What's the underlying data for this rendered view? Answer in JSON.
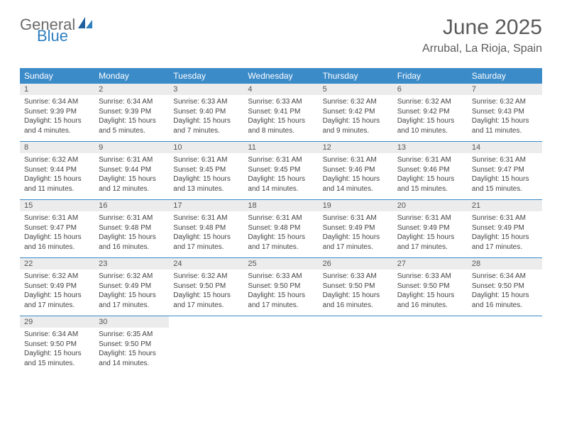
{
  "brand": {
    "general": "General",
    "blue": "Blue"
  },
  "title": "June 2025",
  "location": "Arrubal, La Rioja, Spain",
  "colors": {
    "header_bg": "#3b8bc9",
    "header_text": "#ffffff",
    "daynum_bg": "#ececec",
    "text": "#444444",
    "title_text": "#5a5a5a",
    "logo_gray": "#6b6b6b",
    "logo_blue": "#2f7fbf"
  },
  "day_headers": [
    "Sunday",
    "Monday",
    "Tuesday",
    "Wednesday",
    "Thursday",
    "Friday",
    "Saturday"
  ],
  "weeks": [
    [
      {
        "n": "1",
        "sr": "6:34 AM",
        "ss": "9:39 PM",
        "dl": "15 hours and 4 minutes."
      },
      {
        "n": "2",
        "sr": "6:34 AM",
        "ss": "9:39 PM",
        "dl": "15 hours and 5 minutes."
      },
      {
        "n": "3",
        "sr": "6:33 AM",
        "ss": "9:40 PM",
        "dl": "15 hours and 7 minutes."
      },
      {
        "n": "4",
        "sr": "6:33 AM",
        "ss": "9:41 PM",
        "dl": "15 hours and 8 minutes."
      },
      {
        "n": "5",
        "sr": "6:32 AM",
        "ss": "9:42 PM",
        "dl": "15 hours and 9 minutes."
      },
      {
        "n": "6",
        "sr": "6:32 AM",
        "ss": "9:42 PM",
        "dl": "15 hours and 10 minutes."
      },
      {
        "n": "7",
        "sr": "6:32 AM",
        "ss": "9:43 PM",
        "dl": "15 hours and 11 minutes."
      }
    ],
    [
      {
        "n": "8",
        "sr": "6:32 AM",
        "ss": "9:44 PM",
        "dl": "15 hours and 11 minutes."
      },
      {
        "n": "9",
        "sr": "6:31 AM",
        "ss": "9:44 PM",
        "dl": "15 hours and 12 minutes."
      },
      {
        "n": "10",
        "sr": "6:31 AM",
        "ss": "9:45 PM",
        "dl": "15 hours and 13 minutes."
      },
      {
        "n": "11",
        "sr": "6:31 AM",
        "ss": "9:45 PM",
        "dl": "15 hours and 14 minutes."
      },
      {
        "n": "12",
        "sr": "6:31 AM",
        "ss": "9:46 PM",
        "dl": "15 hours and 14 minutes."
      },
      {
        "n": "13",
        "sr": "6:31 AM",
        "ss": "9:46 PM",
        "dl": "15 hours and 15 minutes."
      },
      {
        "n": "14",
        "sr": "6:31 AM",
        "ss": "9:47 PM",
        "dl": "15 hours and 15 minutes."
      }
    ],
    [
      {
        "n": "15",
        "sr": "6:31 AM",
        "ss": "9:47 PM",
        "dl": "15 hours and 16 minutes."
      },
      {
        "n": "16",
        "sr": "6:31 AM",
        "ss": "9:48 PM",
        "dl": "15 hours and 16 minutes."
      },
      {
        "n": "17",
        "sr": "6:31 AM",
        "ss": "9:48 PM",
        "dl": "15 hours and 17 minutes."
      },
      {
        "n": "18",
        "sr": "6:31 AM",
        "ss": "9:48 PM",
        "dl": "15 hours and 17 minutes."
      },
      {
        "n": "19",
        "sr": "6:31 AM",
        "ss": "9:49 PM",
        "dl": "15 hours and 17 minutes."
      },
      {
        "n": "20",
        "sr": "6:31 AM",
        "ss": "9:49 PM",
        "dl": "15 hours and 17 minutes."
      },
      {
        "n": "21",
        "sr": "6:31 AM",
        "ss": "9:49 PM",
        "dl": "15 hours and 17 minutes."
      }
    ],
    [
      {
        "n": "22",
        "sr": "6:32 AM",
        "ss": "9:49 PM",
        "dl": "15 hours and 17 minutes."
      },
      {
        "n": "23",
        "sr": "6:32 AM",
        "ss": "9:49 PM",
        "dl": "15 hours and 17 minutes."
      },
      {
        "n": "24",
        "sr": "6:32 AM",
        "ss": "9:50 PM",
        "dl": "15 hours and 17 minutes."
      },
      {
        "n": "25",
        "sr": "6:33 AM",
        "ss": "9:50 PM",
        "dl": "15 hours and 17 minutes."
      },
      {
        "n": "26",
        "sr": "6:33 AM",
        "ss": "9:50 PM",
        "dl": "15 hours and 16 minutes."
      },
      {
        "n": "27",
        "sr": "6:33 AM",
        "ss": "9:50 PM",
        "dl": "15 hours and 16 minutes."
      },
      {
        "n": "28",
        "sr": "6:34 AM",
        "ss": "9:50 PM",
        "dl": "15 hours and 16 minutes."
      }
    ],
    [
      {
        "n": "29",
        "sr": "6:34 AM",
        "ss": "9:50 PM",
        "dl": "15 hours and 15 minutes."
      },
      {
        "n": "30",
        "sr": "6:35 AM",
        "ss": "9:50 PM",
        "dl": "15 hours and 14 minutes."
      },
      null,
      null,
      null,
      null,
      null
    ]
  ],
  "labels": {
    "sunrise": "Sunrise: ",
    "sunset": "Sunset: ",
    "daylight": "Daylight: "
  }
}
